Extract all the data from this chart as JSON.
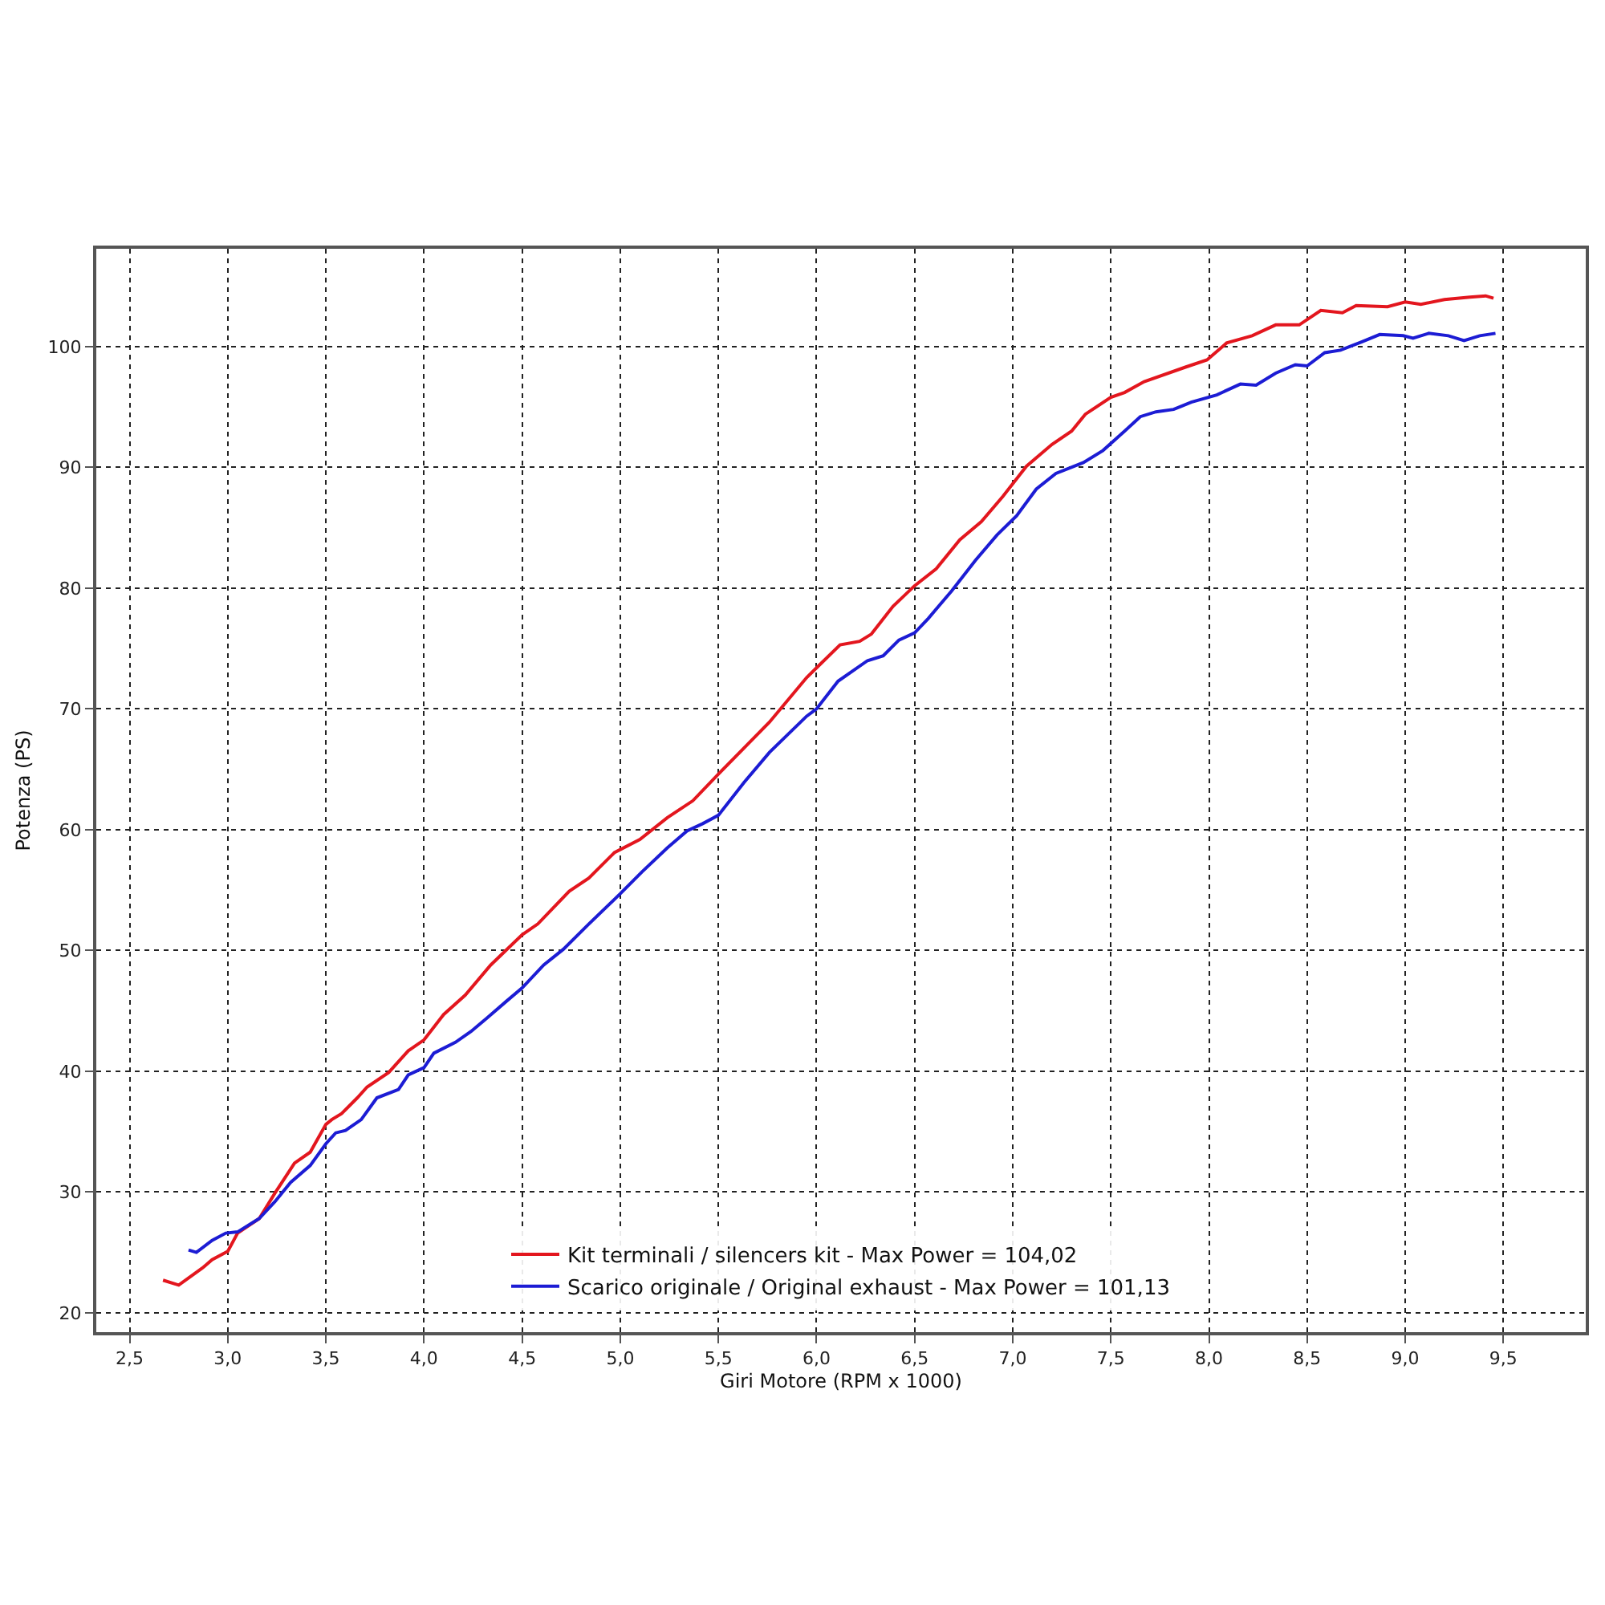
{
  "chart_data": {
    "type": "line",
    "xlabel": "Giri Motore (RPM x 1000)",
    "ylabel": "Potenza (PS)",
    "xlim": [
      2.33,
      9.92
    ],
    "ylim": [
      18.4,
      108.1
    ],
    "xticks": [
      {
        "value": 2.5,
        "label": "2,5"
      },
      {
        "value": 3.0,
        "label": "3,0"
      },
      {
        "value": 3.5,
        "label": "3,5"
      },
      {
        "value": 4.0,
        "label": "4,0"
      },
      {
        "value": 4.5,
        "label": "4,5"
      },
      {
        "value": 5.0,
        "label": "5,0"
      },
      {
        "value": 5.5,
        "label": "5,5"
      },
      {
        "value": 6.0,
        "label": "6,0"
      },
      {
        "value": 6.5,
        "label": "6,5"
      },
      {
        "value": 7.0,
        "label": "7,0"
      },
      {
        "value": 7.5,
        "label": "7,5"
      },
      {
        "value": 8.0,
        "label": "8,0"
      },
      {
        "value": 8.5,
        "label": "8,5"
      },
      {
        "value": 9.0,
        "label": "9,0"
      },
      {
        "value": 9.5,
        "label": "9,5"
      }
    ],
    "yticks": [
      20,
      30,
      40,
      50,
      60,
      70,
      80,
      90,
      100
    ],
    "grid": true,
    "legend": "bottom",
    "line_style": "solid",
    "marker": "none",
    "series": [
      {
        "name": "Kit terminali / silencers kit - Max Power = 104,02",
        "color": "#e3161e",
        "x": [
          2.67,
          2.75,
          2.87,
          2.92,
          3.0,
          3.05,
          3.16,
          3.24,
          3.34,
          3.42,
          3.5,
          3.53,
          3.58,
          3.66,
          3.71,
          3.82,
          3.92,
          4.0,
          4.1,
          4.21,
          4.34,
          4.5,
          4.58,
          4.74,
          4.84,
          4.97,
          5.1,
          5.24,
          5.37,
          5.5,
          5.76,
          5.95,
          6.0,
          6.12,
          6.22,
          6.28,
          6.39,
          6.5,
          6.61,
          6.73,
          6.84,
          6.95,
          7.07,
          7.2,
          7.3,
          7.37,
          7.5,
          7.57,
          7.67,
          7.88,
          7.99,
          8.09,
          8.22,
          8.34,
          8.46,
          8.57,
          8.68,
          8.75,
          8.91,
          9.0,
          9.08,
          9.2,
          9.33,
          9.41,
          9.45
        ],
        "values": [
          22.7,
          22.3,
          23.7,
          24.4,
          25.1,
          26.6,
          27.8,
          29.9,
          32.4,
          33.3,
          35.6,
          36.0,
          36.5,
          37.8,
          38.7,
          39.9,
          41.7,
          42.6,
          44.7,
          46.3,
          48.8,
          51.3,
          52.2,
          54.9,
          56.0,
          58.1,
          59.2,
          61.0,
          62.4,
          64.6,
          68.9,
          72.6,
          73.4,
          75.3,
          75.6,
          76.2,
          78.5,
          80.2,
          81.6,
          84.0,
          85.5,
          87.6,
          90.1,
          91.9,
          93.0,
          94.4,
          95.8,
          96.2,
          97.1,
          98.3,
          98.9,
          100.3,
          100.9,
          101.8,
          101.8,
          103.0,
          102.8,
          103.4,
          103.3,
          103.7,
          103.5,
          103.9,
          104.1,
          104.2,
          104.0
        ]
      },
      {
        "name": "Scarico originale / Original exhaust - Max Power = 101,13",
        "color": "#1c1cd4",
        "x": [
          2.8,
          2.84,
          2.92,
          2.99,
          3.05,
          3.16,
          3.24,
          3.32,
          3.42,
          3.5,
          3.55,
          3.6,
          3.68,
          3.76,
          3.87,
          3.92,
          4.0,
          4.05,
          4.16,
          4.24,
          4.32,
          4.42,
          4.5,
          4.61,
          4.71,
          4.84,
          5.0,
          5.11,
          5.24,
          5.34,
          5.42,
          5.5,
          5.63,
          5.76,
          5.95,
          6.0,
          6.11,
          6.26,
          6.34,
          6.42,
          6.5,
          6.57,
          6.69,
          6.81,
          6.92,
          7.02,
          7.12,
          7.22,
          7.36,
          7.46,
          7.57,
          7.65,
          7.73,
          7.82,
          7.91,
          8.04,
          8.16,
          8.24,
          8.34,
          8.44,
          8.5,
          8.59,
          8.67,
          8.78,
          8.87,
          8.99,
          9.04,
          9.12,
          9.22,
          9.3,
          9.38,
          9.46
        ],
        "values": [
          25.2,
          25.0,
          26.0,
          26.6,
          26.7,
          27.8,
          29.2,
          30.8,
          32.2,
          34.0,
          34.9,
          35.1,
          36.0,
          37.8,
          38.5,
          39.7,
          40.3,
          41.5,
          42.4,
          43.3,
          44.4,
          45.8,
          46.9,
          48.8,
          50.1,
          52.2,
          54.7,
          56.5,
          58.5,
          59.9,
          60.5,
          61.2,
          63.9,
          66.4,
          69.4,
          70.0,
          72.3,
          74.0,
          74.4,
          75.7,
          76.3,
          77.5,
          79.8,
          82.3,
          84.4,
          86.0,
          88.2,
          89.5,
          90.4,
          91.4,
          93.0,
          94.2,
          94.6,
          94.8,
          95.4,
          96.0,
          96.9,
          96.8,
          97.8,
          98.5,
          98.4,
          99.5,
          99.7,
          100.4,
          101.0,
          100.9,
          100.7,
          101.1,
          100.9,
          100.5,
          100.9,
          101.1
        ]
      }
    ]
  }
}
